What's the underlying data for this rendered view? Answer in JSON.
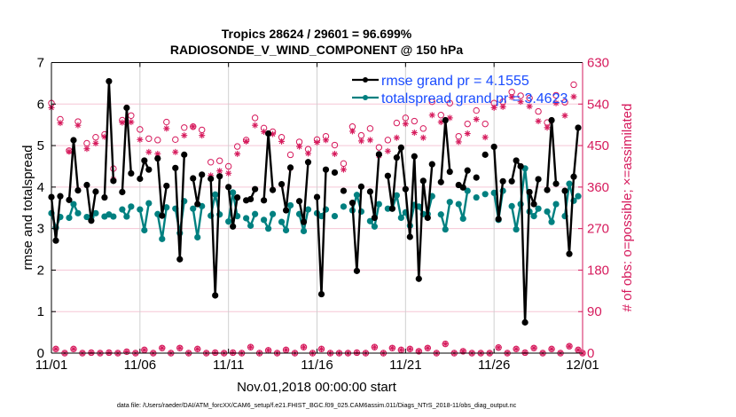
{
  "chart_data": {
    "type": "line",
    "title": [
      "Tropics 28624 / 29601 = 96.699%",
      "RADIOSONDE_V_WIND_COMPONENT @ 150 hPa"
    ],
    "xlabel": "Nov.01,2018 00:00:00 start",
    "ylabel": "rmse and totalspread",
    "ylabel_right": "# of obs: o=possible; ×=assimilated",
    "footer": "data file: /Users/raeder/DAI/ATM_forcXX/CAM6_setup/f.e21.FHIST_BGC.f09_025.CAM6assim.011/Diags_NTrS_2018-11/obs_diag_output.nc",
    "xlim": [
      "2018-11-01T00:00",
      "2018-12-01T00:00"
    ],
    "xticks": [
      "11/01",
      "11/06",
      "11/11",
      "11/16",
      "11/21",
      "11/26",
      "12/01"
    ],
    "ylim": [
      0,
      7
    ],
    "yticks": [
      "0",
      "1",
      "2",
      "3",
      "4",
      "5",
      "6",
      "7"
    ],
    "ylim_right": [
      0,
      630
    ],
    "yticks_right": [
      "0",
      "90",
      "180",
      "270",
      "360",
      "450",
      "540",
      "630"
    ],
    "grid": true,
    "legend_placement": "top-right",
    "colors": {
      "rmse": "#000000",
      "totalspread": "#008080",
      "obs": "#d61a5c",
      "legend_text": "#1a4cff",
      "grid_v": "#d0d0d0",
      "grid_h": "#f5c6d6"
    },
    "series": [
      {
        "name": "rmse grand pr = 4.1555",
        "values": [
          3.76,
          2.71,
          3.78,
          null,
          3.69,
          5.13,
          3.92,
          null,
          4.05,
          3.19,
          3.89,
          null,
          3.75,
          6.55,
          4.15,
          null,
          3.88,
          5.91,
          4.33,
          null,
          4.2,
          4.64,
          4.42,
          null,
          4.69,
          3.31,
          4.03,
          null,
          4.46,
          2.26,
          4.78,
          null,
          4.21,
          3.59,
          4.3,
          null,
          4.2,
          1.39,
          4.26,
          null,
          4.0,
          3.05,
          3.75,
          null,
          3.68,
          3.71,
          3.95,
          null,
          3.68,
          5.29,
          3.93,
          null,
          4.07,
          3.44,
          4.47,
          null,
          3.66,
          3.16,
          4.6,
          null,
          3.76,
          1.42,
          4.42,
          null,
          4.35,
          null,
          3.91,
          null,
          3.62,
          1.98,
          4.01,
          null,
          3.89,
          3.26,
          4.79,
          null,
          4.27,
          3.48,
          4.71,
          4.95,
          3.95,
          2.8,
          4.74,
          1.79,
          4.15,
          3.26,
          4.55,
          null,
          4.12,
          5.61,
          4.37,
          null,
          4.05,
          3.99,
          4.4,
          null,
          4.23,
          null,
          4.78,
          null,
          4.97,
          3.23,
          4.14,
          null,
          4.14,
          4.64,
          4.5,
          0.74,
          3.88,
          3.59,
          4.19,
          null,
          3.93,
          5.61,
          4.08,
          null,
          3.91,
          2.39,
          4.25,
          5.43,
          null
        ]
      },
      {
        "name": "totalspread grand pr = 3.4623",
        "values": [
          3.37,
          3.02,
          3.28,
          null,
          3.26,
          3.59,
          3.37,
          null,
          3.28,
          3.28,
          3.37,
          null,
          3.29,
          3.34,
          3.29,
          null,
          3.46,
          3.29,
          3.53,
          null,
          3.46,
          2.96,
          3.61,
          null,
          3.35,
          2.75,
          3.51,
          null,
          3.48,
          2.89,
          3.66,
          null,
          3.48,
          2.79,
          3.54,
          null,
          3.31,
          3.82,
          3.34,
          null,
          3.17,
          3.87,
          3.3,
          null,
          3.25,
          3.07,
          3.35,
          null,
          3.21,
          3.0,
          3.35,
          null,
          3.16,
          2.96,
          3.56,
          null,
          3.35,
          2.94,
          3.46,
          null,
          3.37,
          3.3,
          3.46,
          null,
          3.3,
          null,
          3.53,
          null,
          3.44,
          3.81,
          3.41,
          null,
          3.18,
          3.05,
          3.59,
          null,
          3.48,
          3.48,
          3.8,
          3.26,
          3.39,
          3.07,
          3.57,
          3.53,
          3.35,
          3.35,
          3.78,
          null,
          3.34,
          2.98,
          3.64,
          null,
          3.59,
          3.24,
          3.91,
          null,
          3.75,
          null,
          3.83,
          null,
          3.86,
          3.21,
          3.91,
          null,
          3.54,
          2.98,
          3.59,
          4.45,
          3.41,
          3.3,
          3.48,
          null,
          3.41,
          3.16,
          3.59,
          null,
          3.3,
          4.08,
          3.67,
          3.78,
          null
        ]
      },
      {
        "name": "o=possible",
        "axis": "right",
        "values": [
          542,
          9,
          507,
          0,
          439,
          9,
          502,
          0,
          455,
          1,
          468,
          0,
          474,
          1,
          400,
          0,
          505,
          3,
          515,
          0,
          485,
          7,
          465,
          0,
          462,
          11,
          501,
          0,
          463,
          11,
          489,
          0,
          491,
          9,
          484,
          0,
          414,
          1,
          417,
          0,
          405,
          1,
          448,
          0,
          462,
          13,
          510,
          0,
          488,
          6,
          480,
          0,
          468,
          7,
          430,
          0,
          458,
          13,
          442,
          0,
          463,
          9,
          470,
          0,
          451,
          0,
          411,
          0,
          491,
          1,
          472,
          0,
          487,
          13,
          446,
          0,
          462,
          11,
          499,
          7,
          510,
          9,
          503,
          4,
          487,
          11,
          545,
          0,
          516,
          20,
          542,
          0,
          470,
          4,
          497,
          0,
          526,
          0,
          497,
          0,
          542,
          12,
          545,
          0,
          566,
          9,
          558,
          1,
          553,
          11,
          524,
          0,
          500,
          9,
          559,
          0,
          544,
          15,
          582,
          7,
          0
        ]
      },
      {
        "name": "×=assimilated",
        "axis": "right",
        "values": [
          532,
          9,
          499,
          0,
          437,
          9,
          494,
          0,
          443,
          1,
          455,
          0,
          469,
          1,
          377,
          0,
          500,
          3,
          501,
          0,
          463,
          7,
          436,
          0,
          432,
          11,
          487,
          0,
          436,
          11,
          472,
          0,
          491,
          9,
          472,
          0,
          385,
          1,
          395,
          0,
          390,
          1,
          432,
          0,
          459,
          13,
          494,
          0,
          480,
          6,
          475,
          0,
          459,
          7,
          401,
          0,
          448,
          13,
          433,
          0,
          457,
          9,
          462,
          0,
          432,
          0,
          398,
          0,
          481,
          1,
          460,
          0,
          462,
          13,
          428,
          0,
          438,
          11,
          467,
          7,
          497,
          9,
          478,
          4,
          467,
          11,
          516,
          0,
          501,
          20,
          510,
          0,
          458,
          4,
          476,
          0,
          507,
          0,
          468,
          0,
          532,
          12,
          534,
          0,
          555,
          9,
          545,
          1,
          535,
          11,
          503,
          0,
          489,
          9,
          542,
          0,
          515,
          15,
          556,
          7,
          0
        ]
      }
    ]
  }
}
